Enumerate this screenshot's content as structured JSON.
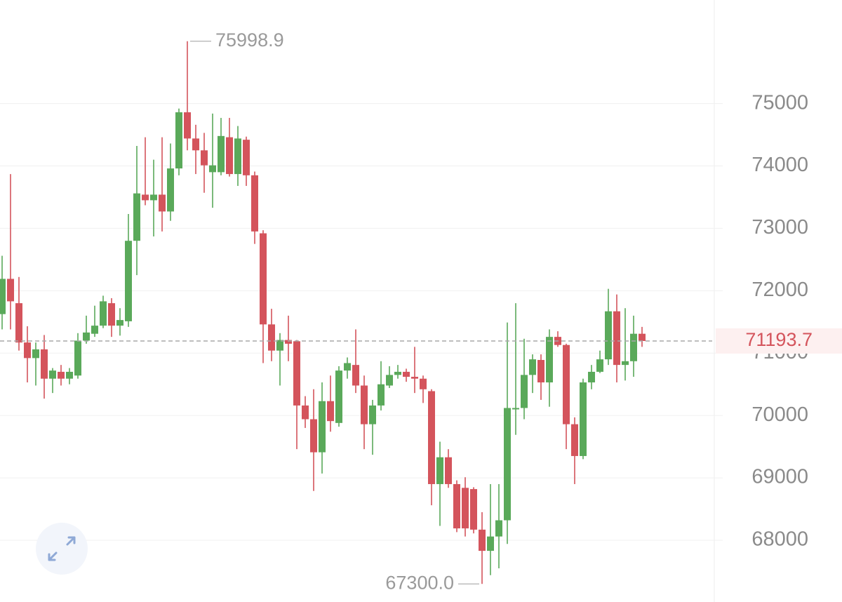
{
  "chart_data": {
    "type": "candlestick",
    "series": {
      "up_color": "#5aa95a",
      "down_color": "#d4545c",
      "open": [
        71625,
        72190,
        71800,
        71170,
        70920,
        71060,
        70590,
        70700,
        70590,
        70640,
        71200,
        71310,
        71440,
        71800,
        71440,
        71510,
        72800,
        73540,
        73450,
        73540,
        73270,
        73960,
        74860,
        74440,
        74250,
        73900,
        73900,
        74460,
        73870,
        74420,
        73850,
        72920,
        71460,
        71040,
        71210,
        71190,
        70160,
        69940,
        69410,
        70230,
        69880,
        70720,
        70810,
        70480,
        69860,
        70160,
        70480,
        70650,
        70700,
        70620,
        70590,
        70390,
        68900,
        69330,
        68900,
        68840,
        68820,
        68170,
        67830,
        68060,
        68320,
        70100,
        70120,
        70650,
        70890,
        70530,
        71260,
        71130,
        69860,
        69350,
        70530,
        70700,
        70900,
        71670,
        70810,
        70870,
        71310
      ],
      "high": [
        72560,
        73870,
        72220,
        71430,
        71170,
        71290,
        70760,
        70810,
        70760,
        71320,
        71600,
        71760,
        71920,
        71880,
        71720,
        73230,
        74320,
        74460,
        74100,
        74460,
        74360,
        74920,
        75998.9,
        74660,
        74530,
        74840,
        74770,
        74770,
        74640,
        74470,
        73910,
        72970,
        71710,
        71320,
        71600,
        71210,
        70310,
        70420,
        70530,
        70640,
        70790,
        70930,
        71380,
        70640,
        70250,
        70870,
        70790,
        70810,
        70750,
        71100,
        70640,
        70420,
        69580,
        69460,
        68960,
        69010,
        68850,
        68450,
        68900,
        68900,
        71490,
        71800,
        71230,
        70980,
        70980,
        71380,
        71350,
        71150,
        69970,
        70590,
        70810,
        71040,
        72030,
        71940,
        71720,
        71600,
        71420
      ],
      "low": [
        71380,
        71380,
        71040,
        70530,
        70480,
        70270,
        70360,
        70480,
        70500,
        70590,
        71150,
        71260,
        71400,
        71260,
        71280,
        71420,
        72250,
        73370,
        72870,
        72950,
        73120,
        73850,
        74250,
        73870,
        73570,
        73330,
        73850,
        73830,
        73680,
        73680,
        72750,
        70840,
        70870,
        70480,
        70870,
        69460,
        69800,
        68790,
        69070,
        69740,
        69820,
        70590,
        70360,
        69460,
        69370,
        70080,
        70440,
        70590,
        70540,
        70360,
        70200,
        68560,
        68230,
        68840,
        68130,
        68060,
        68110,
        67300,
        67440,
        67550,
        67940,
        69690,
        69940,
        70360,
        70250,
        70140,
        71100,
        69460,
        68900,
        69300,
        70420,
        70680,
        70810,
        70530,
        70560,
        70620,
        71100
      ],
      "close": [
        72190,
        71830,
        71170,
        70920,
        71060,
        70590,
        70720,
        70590,
        70700,
        71200,
        71330,
        71440,
        71830,
        71440,
        71530,
        72800,
        73560,
        73450,
        73540,
        73270,
        73960,
        74860,
        74440,
        74250,
        74010,
        74010,
        74480,
        73870,
        74440,
        73850,
        72950,
        71460,
        71040,
        71210,
        71150,
        70160,
        69940,
        69410,
        70230,
        69910,
        70720,
        70840,
        70480,
        69860,
        70160,
        70500,
        70650,
        70700,
        70620,
        70590,
        70420,
        68900,
        69330,
        68900,
        68190,
        68190,
        68170,
        67830,
        68060,
        68320,
        70120,
        70120,
        70650,
        70900,
        70530,
        71260,
        71130,
        69860,
        69350,
        70530,
        70700,
        70900,
        71670,
        70810,
        70870,
        71310,
        71193.7
      ]
    },
    "ylim": [
      67010,
      76660
    ],
    "yticks": [
      68000,
      69000,
      70000,
      71000,
      72000,
      73000,
      74000,
      75000
    ],
    "grid": true,
    "last_price": {
      "value": 71193.7,
      "label": "71193.7"
    },
    "high_marker": {
      "value": 75998.9,
      "label": "75998.9"
    },
    "low_marker": {
      "value": 67300,
      "label": "67300.0"
    }
  }
}
